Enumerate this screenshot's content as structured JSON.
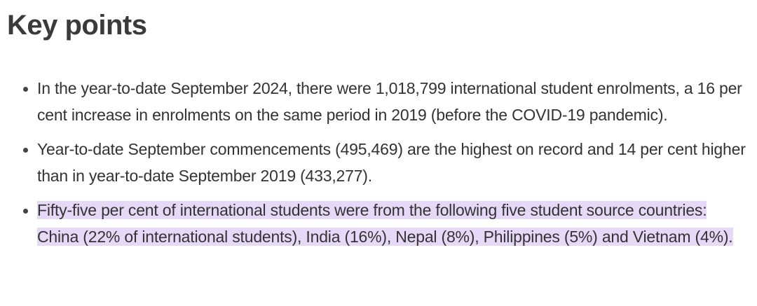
{
  "title": "Key points",
  "highlight_color": "#e6d9f7",
  "bullets": [
    {
      "text": "In the year-to-date September 2024, there were 1,018,799 international student enrolments, a 16 per cent increase in enrolments on the same period in 2019 (before the COVID-19 pandemic).",
      "highlighted": false
    },
    {
      "text": "Year-to-date September commencements (495,469) are the highest on record and 14 per cent higher than in year-to-date September 2019 (433,277).",
      "highlighted": false
    },
    {
      "text": "Fifty-five per cent of international students were from the following five student source countries: China (22% of international students), India (16%), Nepal (8%), Philippines (5%) and Vietnam (4%).",
      "highlighted": true
    }
  ]
}
